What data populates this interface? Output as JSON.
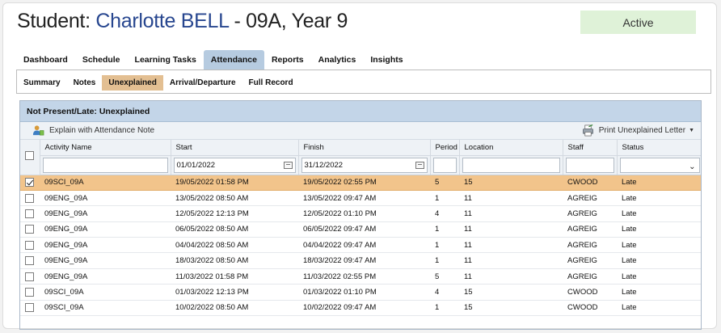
{
  "header": {
    "title_prefix": "Student: ",
    "student_name": "Charlotte BELL",
    "title_suffix": " - 09A, Year 9",
    "status_badge": "Active"
  },
  "main_tabs": [
    "Dashboard",
    "Schedule",
    "Learning Tasks",
    "Attendance",
    "Reports",
    "Analytics",
    "Insights"
  ],
  "main_tabs_active": "Attendance",
  "sub_tabs": [
    "Summary",
    "Notes",
    "Unexplained",
    "Arrival/Departure",
    "Full Record"
  ],
  "sub_tabs_active": "Unexplained",
  "panel": {
    "title": "Not Present/Late: Unexplained",
    "explain_action": "Explain with Attendance Note",
    "print_action": "Print Unexplained Letter"
  },
  "table": {
    "columns": [
      "Activity Name",
      "Start",
      "Finish",
      "Period",
      "Location",
      "Staff",
      "Status"
    ],
    "filters": {
      "activity": "",
      "start": "01/01/2022",
      "finish": "31/12/2022",
      "period": "",
      "location": "",
      "staff": "",
      "status": ""
    },
    "rows": [
      {
        "checked": true,
        "activity": "09SCI_09A",
        "start": "19/05/2022 01:58 PM",
        "finish": "19/05/2022 02:55 PM",
        "period": "5",
        "location": "15",
        "staff": "CWOOD",
        "status": "Late"
      },
      {
        "checked": false,
        "activity": "09ENG_09A",
        "start": "13/05/2022 08:50 AM",
        "finish": "13/05/2022 09:47 AM",
        "period": "1",
        "location": "11",
        "staff": "AGREIG",
        "status": "Late"
      },
      {
        "checked": false,
        "activity": "09ENG_09A",
        "start": "12/05/2022 12:13 PM",
        "finish": "12/05/2022 01:10 PM",
        "period": "4",
        "location": "11",
        "staff": "AGREIG",
        "status": "Late"
      },
      {
        "checked": false,
        "activity": "09ENG_09A",
        "start": "06/05/2022 08:50 AM",
        "finish": "06/05/2022 09:47 AM",
        "period": "1",
        "location": "11",
        "staff": "AGREIG",
        "status": "Late"
      },
      {
        "checked": false,
        "activity": "09ENG_09A",
        "start": "04/04/2022 08:50 AM",
        "finish": "04/04/2022 09:47 AM",
        "period": "1",
        "location": "11",
        "staff": "AGREIG",
        "status": "Late"
      },
      {
        "checked": false,
        "activity": "09ENG_09A",
        "start": "18/03/2022 08:50 AM",
        "finish": "18/03/2022 09:47 AM",
        "period": "1",
        "location": "11",
        "staff": "AGREIG",
        "status": "Late"
      },
      {
        "checked": false,
        "activity": "09ENG_09A",
        "start": "11/03/2022 01:58 PM",
        "finish": "11/03/2022 02:55 PM",
        "period": "5",
        "location": "11",
        "staff": "AGREIG",
        "status": "Late"
      },
      {
        "checked": false,
        "activity": "09SCI_09A",
        "start": "01/03/2022 12:13 PM",
        "finish": "01/03/2022 01:10 PM",
        "period": "4",
        "location": "15",
        "staff": "CWOOD",
        "status": "Late"
      },
      {
        "checked": false,
        "activity": "09SCI_09A",
        "start": "10/02/2022 08:50 AM",
        "finish": "10/02/2022 09:47 AM",
        "period": "1",
        "location": "15",
        "staff": "CWOOD",
        "status": "Late"
      }
    ]
  },
  "colors": {
    "accent_name": "#27468f",
    "active_badge_bg": "#dff2d8",
    "active_tab_bg": "#b6cbe0",
    "active_subtab_bg": "#e3bf92",
    "selected_row_bg": "#f2c48b",
    "panel_header_bg": "#c3d5e8"
  },
  "icons": {
    "explain_action": "user-note-icon",
    "print_action": "printer-icon",
    "date_filter": "calendar-icon",
    "status_filter": "chevron-down-icon"
  }
}
